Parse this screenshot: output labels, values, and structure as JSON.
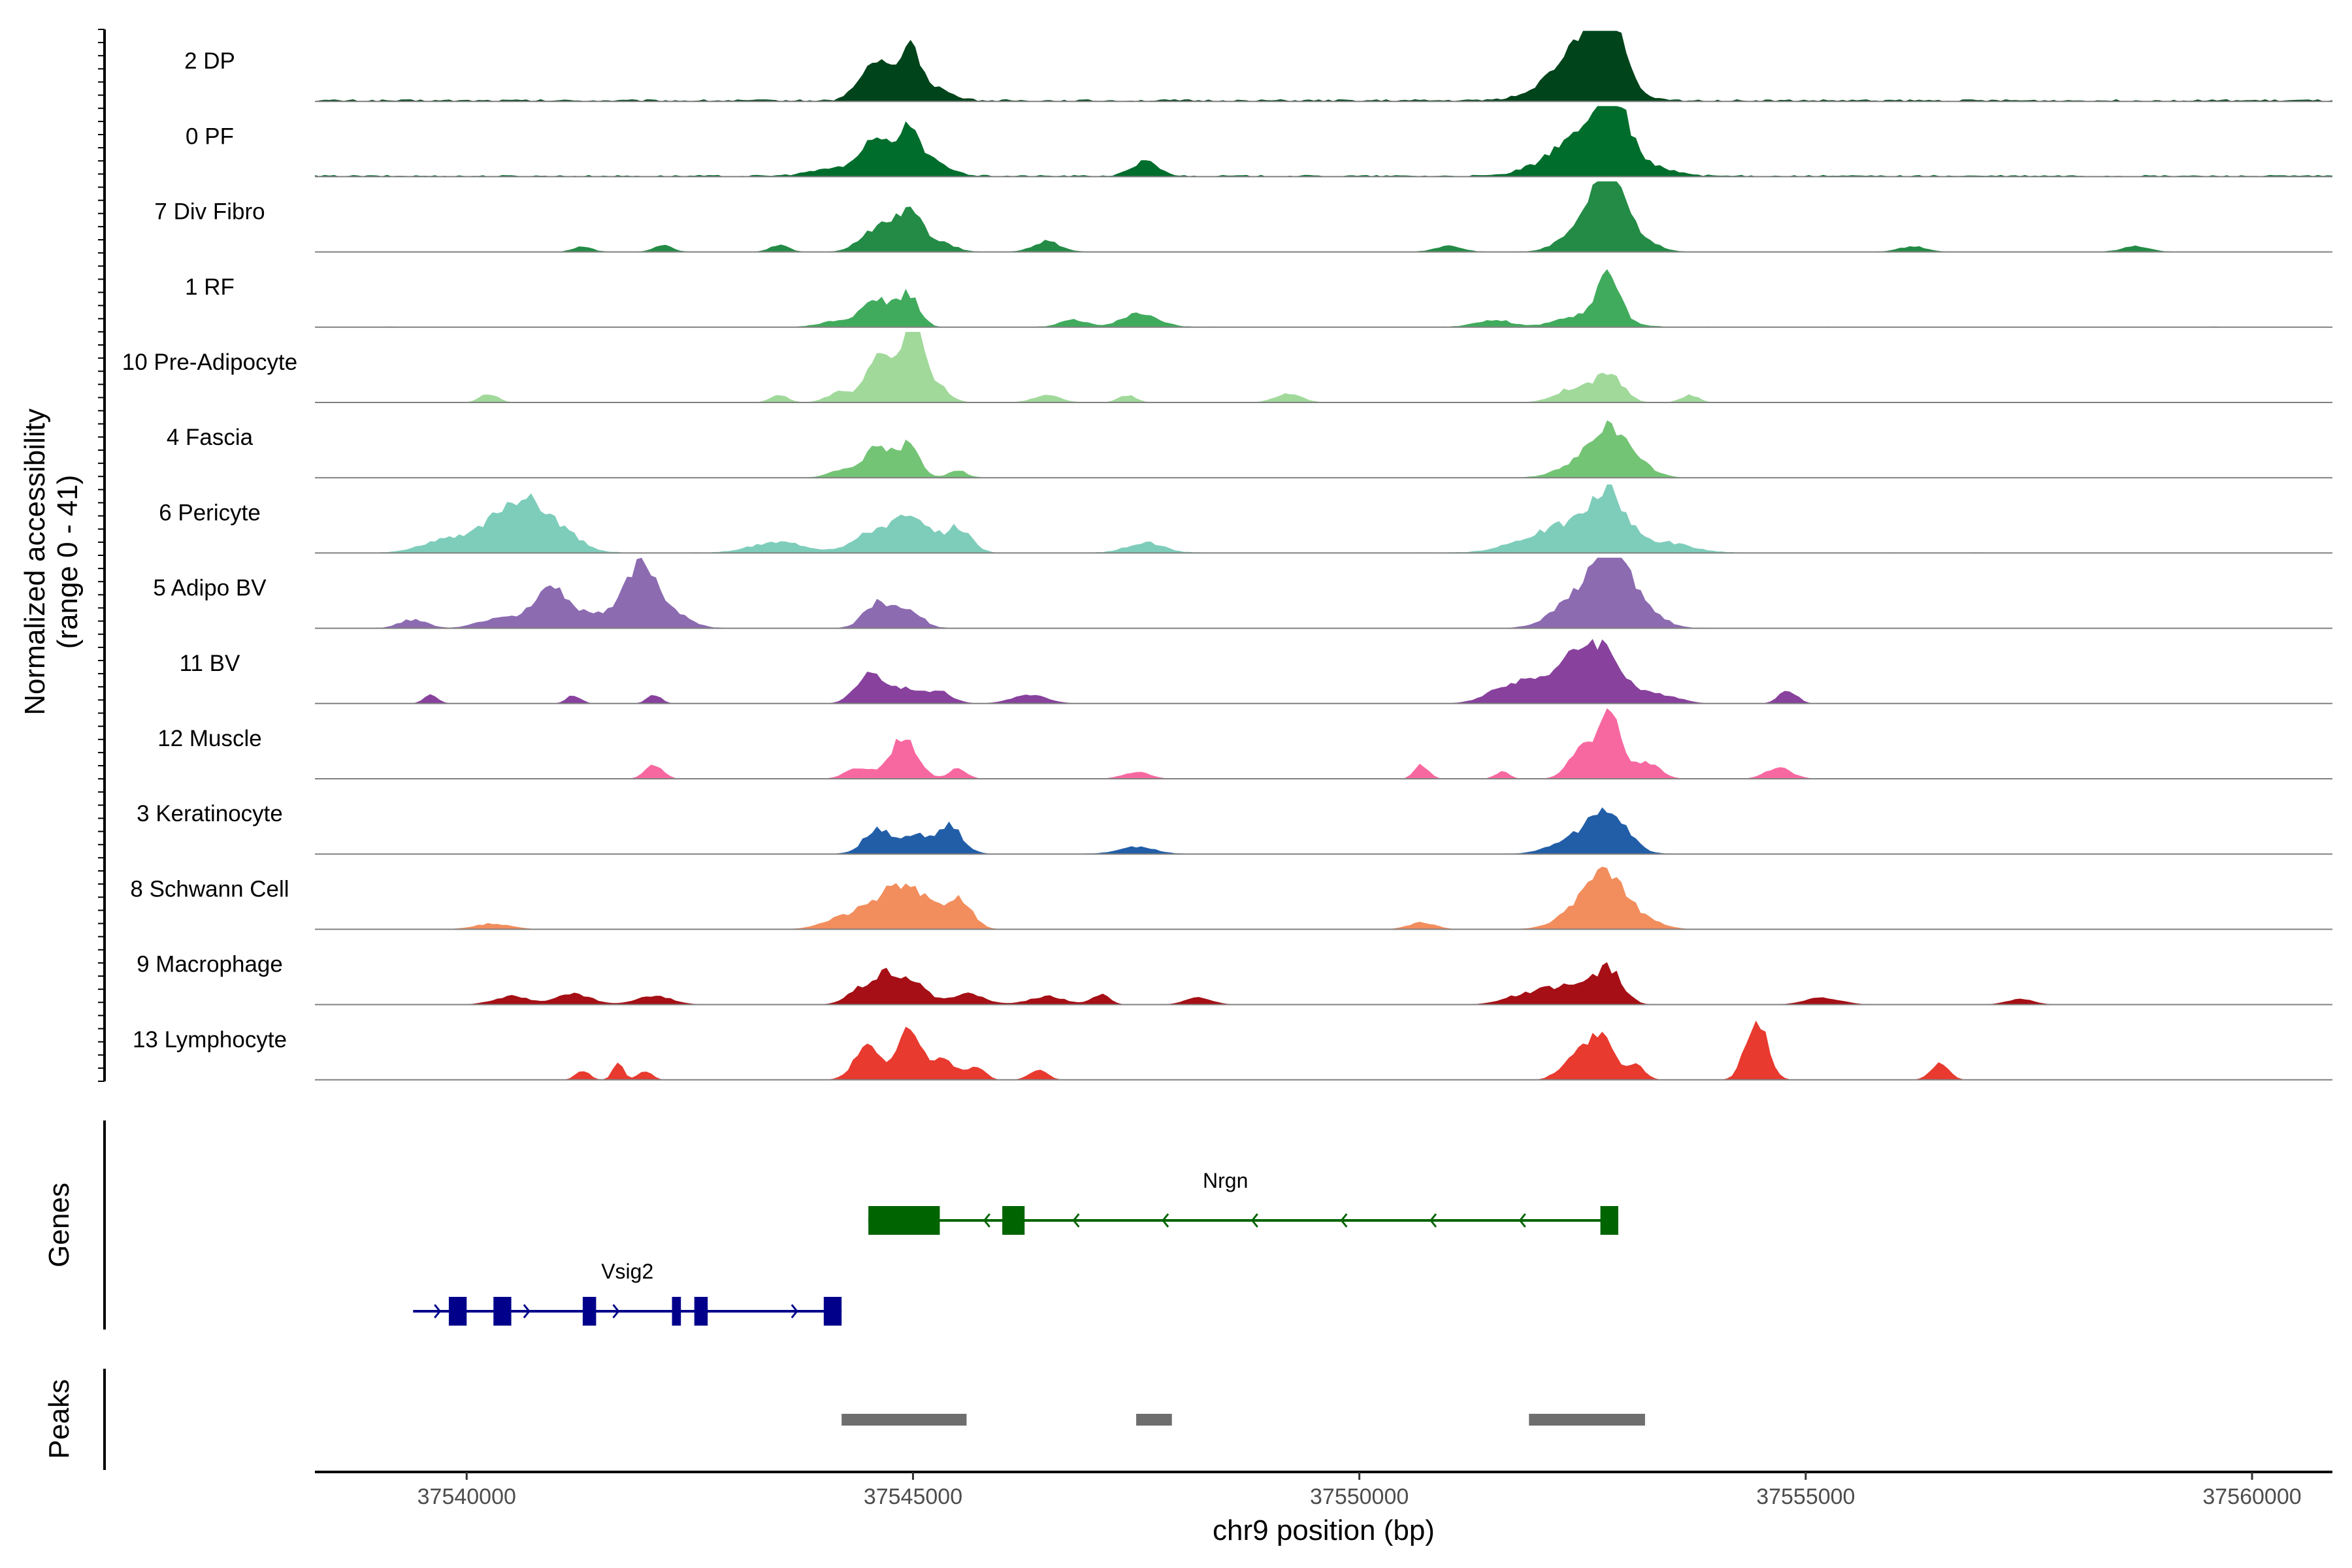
{
  "chart_data": {
    "type": "area",
    "title": "",
    "ylabel_lines": [
      "Normalized accessibility",
      "(range 0 - 41)"
    ],
    "y_range": [
      0,
      41
    ],
    "xlabel": "chr9 position (bp)",
    "xlim": [
      37538300,
      37560900
    ],
    "x_ticks": [
      37540000,
      37545000,
      37550000,
      37555000,
      37560000
    ],
    "x_tick_labels": [
      "37540000",
      "37545000",
      "37550000",
      "37555000",
      "37560000"
    ],
    "genes_label": "Genes",
    "peaks_label": "Peaks",
    "tracks": [
      {
        "name": "2 DP",
        "color": "#00441b",
        "background": 0.5,
        "peaks": [
          [
            37544500,
            0.35,
            150
          ],
          [
            37544750,
            0.45,
            150
          ],
          [
            37545000,
            0.5,
            100
          ],
          [
            37545200,
            0.2,
            200
          ],
          [
            37552600,
            0.55,
            300
          ],
          [
            37552800,
            0.9,
            150
          ],
          [
            37552400,
            0.25,
            250
          ],
          [
            37552100,
            0.1,
            300
          ]
        ]
      },
      {
        "name": "0 PF",
        "color": "#006d2c",
        "background": 0.4,
        "peaks": [
          [
            37544600,
            0.55,
            150
          ],
          [
            37544950,
            0.55,
            120
          ],
          [
            37545200,
            0.2,
            200
          ],
          [
            37544200,
            0.12,
            300
          ],
          [
            37547600,
            0.2,
            150
          ],
          [
            37552800,
            1.0,
            200
          ],
          [
            37552500,
            0.35,
            300
          ],
          [
            37552200,
            0.15,
            300
          ],
          [
            37553200,
            0.12,
            300
          ]
        ]
      },
      {
        "name": "7 Div Fibro",
        "color": "#238b45",
        "background": 0.1,
        "peaks": [
          [
            37544500,
            0.2,
            150
          ],
          [
            37544750,
            0.35,
            150
          ],
          [
            37545000,
            0.45,
            120
          ],
          [
            37545300,
            0.15,
            150
          ],
          [
            37542200,
            0.1,
            100
          ],
          [
            37541300,
            0.08,
            100
          ],
          [
            37543500,
            0.1,
            100
          ],
          [
            37546500,
            0.15,
            150
          ],
          [
            37552600,
            0.5,
            250
          ],
          [
            37552800,
            0.85,
            150
          ],
          [
            37553100,
            0.2,
            200
          ],
          [
            37551000,
            0.08,
            150
          ],
          [
            37556200,
            0.08,
            150
          ],
          [
            37558700,
            0.08,
            150
          ]
        ]
      },
      {
        "name": "1 RF",
        "color": "#41ab5d",
        "background": 0.15,
        "peaks": [
          [
            37544600,
            0.4,
            150
          ],
          [
            37544950,
            0.45,
            120
          ],
          [
            37544200,
            0.1,
            200
          ],
          [
            37547550,
            0.2,
            200
          ],
          [
            37546800,
            0.1,
            150
          ],
          [
            37552600,
            0.2,
            300
          ],
          [
            37552800,
            0.6,
            120
          ],
          [
            37551500,
            0.1,
            200
          ]
        ]
      },
      {
        "name": "10 Pre-Adipocyte",
        "color": "#a1d99b",
        "background": 0.05,
        "peaks": [
          [
            37544600,
            0.7,
            120
          ],
          [
            37544900,
            0.5,
            120
          ],
          [
            37545000,
            1.0,
            80
          ],
          [
            37545200,
            0.35,
            150
          ],
          [
            37544200,
            0.15,
            150
          ],
          [
            37540250,
            0.12,
            100
          ],
          [
            37543500,
            0.1,
            100
          ],
          [
            37546500,
            0.1,
            150
          ],
          [
            37547400,
            0.1,
            100
          ],
          [
            37549200,
            0.12,
            150
          ],
          [
            37552400,
            0.2,
            200
          ],
          [
            37552800,
            0.4,
            150
          ],
          [
            37553700,
            0.1,
            100
          ]
        ]
      },
      {
        "name": "4 Fascia",
        "color": "#74c476",
        "background": 0.1,
        "peaks": [
          [
            37544600,
            0.45,
            150
          ],
          [
            37544950,
            0.45,
            120
          ],
          [
            37545500,
            0.1,
            100
          ],
          [
            37544200,
            0.1,
            150
          ],
          [
            37552800,
            0.6,
            200
          ],
          [
            37552500,
            0.2,
            250
          ],
          [
            37553100,
            0.15,
            200
          ]
        ]
      },
      {
        "name": "6 Pericyte",
        "color": "#7ecdbb",
        "background": 0.15,
        "peaks": [
          [
            37540600,
            0.55,
            250
          ],
          [
            37541000,
            0.3,
            250
          ],
          [
            37540300,
            0.25,
            300
          ],
          [
            37539700,
            0.15,
            250
          ],
          [
            37544600,
            0.3,
            250
          ],
          [
            37545000,
            0.4,
            200
          ],
          [
            37545500,
            0.35,
            150
          ],
          [
            37543500,
            0.15,
            300
          ],
          [
            37547600,
            0.15,
            200
          ],
          [
            37552800,
            0.7,
            200
          ],
          [
            37552400,
            0.35,
            300
          ],
          [
            37551900,
            0.15,
            300
          ],
          [
            37553400,
            0.15,
            300
          ]
        ]
      },
      {
        "name": "5 Adipo BV",
        "color": "#8c6bb1",
        "background": 0.1,
        "peaks": [
          [
            37540800,
            0.25,
            200
          ],
          [
            37541000,
            0.4,
            150
          ],
          [
            37541400,
            0.2,
            200
          ],
          [
            37541800,
            0.35,
            150
          ],
          [
            37542000,
            0.7,
            150
          ],
          [
            37542300,
            0.2,
            200
          ],
          [
            37539400,
            0.12,
            150
          ],
          [
            37540300,
            0.12,
            200
          ],
          [
            37544600,
            0.35,
            150
          ],
          [
            37544950,
            0.25,
            150
          ],
          [
            37552400,
            0.35,
            250
          ],
          [
            37552700,
            0.6,
            200
          ],
          [
            37552900,
            0.8,
            150
          ],
          [
            37553200,
            0.25,
            200
          ]
        ]
      },
      {
        "name": "11 BV",
        "color": "#88419d",
        "background": 0.0,
        "peaks": [
          [
            37544500,
            0.4,
            150
          ],
          [
            37544900,
            0.2,
            200
          ],
          [
            37545300,
            0.15,
            150
          ],
          [
            37546300,
            0.12,
            200
          ],
          [
            37552700,
            0.7,
            250
          ],
          [
            37552300,
            0.4,
            300
          ],
          [
            37551700,
            0.25,
            250
          ],
          [
            37553400,
            0.12,
            200
          ],
          [
            37554800,
            0.2,
            100
          ],
          [
            37539600,
            0.12,
            80
          ],
          [
            37541200,
            0.12,
            80
          ],
          [
            37542100,
            0.12,
            80
          ]
        ]
      },
      {
        "name": "12 Muscle",
        "color": "#f768a1",
        "background": 0.0,
        "peaks": [
          [
            37544900,
            0.6,
            150
          ],
          [
            37544400,
            0.15,
            150
          ],
          [
            37545500,
            0.15,
            100
          ],
          [
            37542100,
            0.2,
            100
          ],
          [
            37552800,
            1.0,
            120
          ],
          [
            37552500,
            0.4,
            150
          ],
          [
            37553200,
            0.25,
            150
          ],
          [
            37547500,
            0.1,
            150
          ],
          [
            37550700,
            0.2,
            80
          ],
          [
            37551600,
            0.1,
            80
          ],
          [
            37554700,
            0.15,
            150
          ]
        ]
      },
      {
        "name": "3 Keratinocyte",
        "color": "#225ea8",
        "background": 0.1,
        "peaks": [
          [
            37544600,
            0.35,
            150
          ],
          [
            37545000,
            0.25,
            150
          ],
          [
            37545400,
            0.4,
            150
          ],
          [
            37552800,
            0.6,
            200
          ],
          [
            37552400,
            0.2,
            250
          ],
          [
            37547500,
            0.1,
            200
          ]
        ]
      },
      {
        "name": "8 Schwann Cell",
        "color": "#f28e5d",
        "background": 0.05,
        "peaks": [
          [
            37544700,
            0.35,
            200
          ],
          [
            37545000,
            0.5,
            200
          ],
          [
            37545500,
            0.45,
            150
          ],
          [
            37544300,
            0.2,
            250
          ],
          [
            37552800,
            0.65,
            200
          ],
          [
            37552500,
            0.3,
            250
          ],
          [
            37553200,
            0.12,
            200
          ],
          [
            37550700,
            0.1,
            150
          ],
          [
            37540300,
            0.08,
            200
          ]
        ]
      },
      {
        "name": "9 Macrophage",
        "color": "#a50f15",
        "background": 0.0,
        "peaks": [
          [
            37544700,
            0.4,
            150
          ],
          [
            37545000,
            0.3,
            150
          ],
          [
            37544400,
            0.2,
            150
          ],
          [
            37545600,
            0.15,
            200
          ],
          [
            37546500,
            0.12,
            200
          ],
          [
            37547100,
            0.15,
            100
          ],
          [
            37548200,
            0.1,
            150
          ],
          [
            37552800,
            0.45,
            150
          ],
          [
            37552400,
            0.25,
            250
          ],
          [
            37551900,
            0.15,
            250
          ],
          [
            37540500,
            0.12,
            200
          ],
          [
            37541200,
            0.15,
            200
          ],
          [
            37542100,
            0.12,
            200
          ],
          [
            37555200,
            0.1,
            200
          ],
          [
            37557400,
            0.08,
            150
          ]
        ]
      },
      {
        "name": "13 Lymphocyte",
        "color": "#e83a2f",
        "background": 0.0,
        "peaks": [
          [
            37544500,
            0.5,
            150
          ],
          [
            37544950,
            0.7,
            120
          ],
          [
            37545300,
            0.3,
            150
          ],
          [
            37545700,
            0.2,
            100
          ],
          [
            37546400,
            0.15,
            100
          ],
          [
            37541300,
            0.12,
            80
          ],
          [
            37541700,
            0.25,
            60
          ],
          [
            37542000,
            0.12,
            80
          ],
          [
            37552700,
            0.6,
            150
          ],
          [
            37552400,
            0.3,
            150
          ],
          [
            37553100,
            0.2,
            100
          ],
          [
            37554450,
            0.9,
            120
          ],
          [
            37556500,
            0.25,
            100
          ]
        ]
      }
    ],
    "genes": [
      {
        "name": "Nrgn",
        "strand": "-",
        "color": "#006400",
        "start": 37544500,
        "end": 37552900,
        "exons": [
          [
            37544500,
            37545300
          ],
          [
            37546000,
            37546250
          ],
          [
            37552700,
            37552900
          ]
        ],
        "label_x": 37548500
      },
      {
        "name": "Vsig2",
        "strand": "+",
        "color": "#00008b",
        "start": 37539400,
        "end": 37544200,
        "exons": [
          [
            37539800,
            37540000
          ],
          [
            37540300,
            37540500
          ],
          [
            37541300,
            37541450
          ],
          [
            37542300,
            37542400
          ],
          [
            37542550,
            37542700
          ],
          [
            37544000,
            37544200
          ]
        ],
        "label_x": 37541800
      }
    ],
    "peaks": [
      [
        37544200,
        37545600
      ],
      [
        37547500,
        37547900
      ],
      [
        37551900,
        37553200
      ]
    ]
  }
}
